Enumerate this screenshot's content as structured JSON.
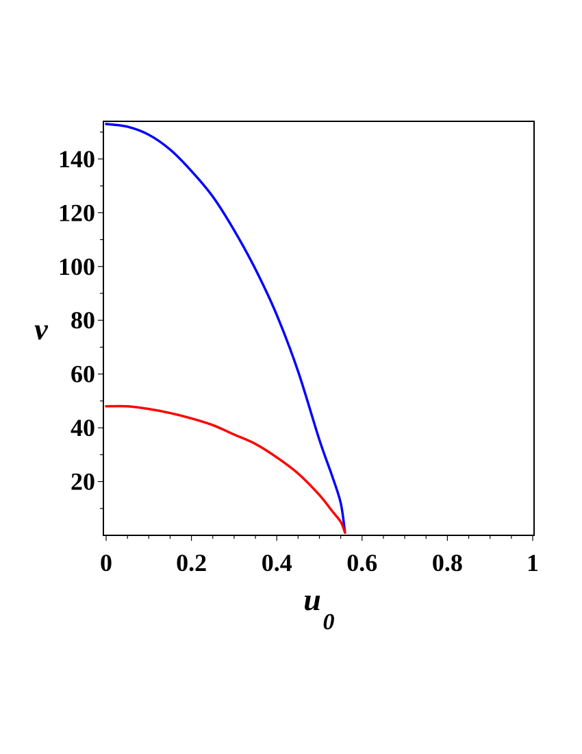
{
  "chart_data": {
    "type": "line",
    "title": "",
    "xlabel": "u",
    "xlabel_subscript": "0",
    "ylabel": "v",
    "xlim": [
      0,
      1
    ],
    "ylim": [
      0,
      154
    ],
    "grid": false,
    "legend": "none",
    "x_ticks": [
      "0",
      "0.2",
      "0.4",
      "0.6",
      "0.8",
      "1"
    ],
    "y_ticks": [
      "20",
      "40",
      "60",
      "80",
      "100",
      "120",
      "140"
    ],
    "series": [
      {
        "color": "#0000ff",
        "x": [
          0,
          0.05,
          0.1,
          0.15,
          0.2,
          0.25,
          0.3,
          0.35,
          0.4,
          0.45,
          0.5,
          0.53,
          0.55,
          0.56
        ],
        "y": [
          153,
          152,
          149,
          143.5,
          135.5,
          126,
          113.5,
          99,
          82,
          61,
          35.5,
          22,
          12,
          1
        ]
      },
      {
        "color": "#ff0000",
        "x": [
          0,
          0.05,
          0.1,
          0.15,
          0.2,
          0.25,
          0.3,
          0.35,
          0.4,
          0.45,
          0.5,
          0.53,
          0.55,
          0.56
        ],
        "y": [
          48,
          48,
          47,
          45.5,
          43.5,
          41,
          37.5,
          34,
          29,
          23,
          15,
          9,
          5,
          1
        ]
      }
    ]
  }
}
